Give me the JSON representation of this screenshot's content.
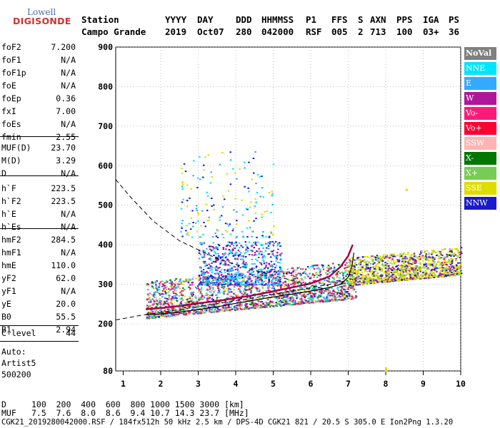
{
  "logo": {
    "top": "Lowell",
    "main": "DIGISONDE"
  },
  "header": {
    "col_label": "Station",
    "station": "Campo Grande",
    "fields": [
      {
        "label": "YYYY",
        "value": "2019"
      },
      {
        "label": "DAY",
        "value": "Oct07"
      },
      {
        "label": "DDD",
        "value": "280"
      },
      {
        "label": "HHMMSS",
        "value": "042000"
      },
      {
        "label": "P1",
        "value": "RSF"
      },
      {
        "label": "FFS",
        "value": "005"
      },
      {
        "label": "S",
        "value": "2"
      },
      {
        "label": "AXN",
        "value": "713"
      },
      {
        "label": "PPS",
        "value": "100"
      },
      {
        "label": "IGA",
        "value": "03+"
      },
      {
        "label": "PS",
        "value": "36"
      }
    ]
  },
  "params": [
    {
      "label": "foF2",
      "value": "7.200"
    },
    {
      "label": "foF1",
      "value": "N/A"
    },
    {
      "label": "foF1p",
      "value": "N/A"
    },
    {
      "label": "foE",
      "value": "N/A"
    },
    {
      "label": "foEp",
      "value": "0.36"
    },
    {
      "label": "fxI",
      "value": "7.00"
    },
    {
      "label": "foEs",
      "value": "N/A"
    },
    {
      "label": "fmin",
      "value": "2.55"
    },
    {
      "label": "MUF(D)",
      "value": "23.70"
    },
    {
      "label": "M(D)",
      "value": "3.29"
    },
    {
      "label": "D",
      "value": "N/A"
    },
    {
      "label": "h`F",
      "value": "223.5"
    },
    {
      "label": "h`F2",
      "value": "223.5"
    },
    {
      "label": "h`E",
      "value": "N/A"
    },
    {
      "label": "h`Es",
      "value": "N/A"
    },
    {
      "label": "hmF2",
      "value": "284.5"
    },
    {
      "label": "hmF1",
      "value": "N/A"
    },
    {
      "label": "hmE",
      "value": "110.0"
    },
    {
      "label": "yF2",
      "value": "62.0"
    },
    {
      "label": "yF1",
      "value": "N/A"
    },
    {
      "label": "yE",
      "value": "20.0"
    },
    {
      "label": "B0",
      "value": "55.5"
    },
    {
      "label": "B1",
      "value": "2.94"
    },
    {
      "label": "C-level",
      "value": "44"
    }
  ],
  "autoscaling": {
    "auto": "Auto:",
    "artist": "Artist5",
    "code": "500200"
  },
  "legend": [
    {
      "label": "NoVal",
      "color": "#808080"
    },
    {
      "label": "NNE",
      "color": "#00e5ff"
    },
    {
      "label": "E",
      "color": "#33aaff"
    },
    {
      "label": "W",
      "color": "#b0169a"
    },
    {
      "label": "Vo-",
      "color": "#ff1a7a"
    },
    {
      "label": "Vo+",
      "color": "#ff0033"
    },
    {
      "label": "SSW",
      "color": "#ffb3b3"
    },
    {
      "label": "X-",
      "color": "#007700"
    },
    {
      "label": "X+",
      "color": "#77cc55"
    },
    {
      "label": "SSE",
      "color": "#dddd00"
    },
    {
      "label": "NNW",
      "color": "#1a1acc"
    }
  ],
  "bottom_table": {
    "row1_label": "D",
    "row1_values": "100  200  400  600  800 1000 1500 3000 [km]",
    "row2_label": "MUF",
    "row2_values": "7.5  7.6  8.0  8.6  9.4 10.7 14.3 23.7 [MHz]"
  },
  "footer": "CGK21_2019280042000.RSF / 184fx512h 50 kHz 2.5 km / DPS-4D CGK21 821 / 20.5 S 305.0 E Ion2Png 1.3.20",
  "chart_data": {
    "type": "scatter",
    "xlim": [
      0.8,
      10
    ],
    "ylim": [
      80,
      900
    ],
    "xticks": [
      "1",
      "2",
      "3",
      "4",
      "5",
      "6",
      "7",
      "8",
      "9",
      "10"
    ],
    "yticks": [
      {
        "v": 900,
        "label": "900"
      },
      {
        "v": 800,
        "label": "800"
      },
      {
        "v": 700,
        "label": "700"
      },
      {
        "v": 600,
        "label": "600"
      },
      {
        "v": 500,
        "label": "500"
      },
      {
        "v": 400,
        "label": "400"
      },
      {
        "v": 300,
        "label": "300"
      },
      {
        "v": 200,
        "label": "200"
      },
      {
        "v": 80,
        "label": "80"
      }
    ],
    "trace_lower": [
      [
        1.6,
        223
      ],
      [
        2,
        225
      ],
      [
        2.5,
        230
      ],
      [
        3,
        236
      ],
      [
        3.5,
        243
      ],
      [
        4,
        252
      ],
      [
        4.5,
        260
      ],
      [
        5,
        268
      ],
      [
        5.5,
        275
      ],
      [
        6,
        283
      ],
      [
        6.5,
        292
      ],
      [
        6.8,
        300
      ],
      [
        7.0,
        318
      ],
      [
        7.1,
        345
      ],
      [
        7.15,
        380
      ]
    ],
    "trace_upper": [
      [
        1.6,
        237
      ],
      [
        2,
        240
      ],
      [
        2.5,
        245
      ],
      [
        3,
        252
      ],
      [
        3.5,
        258
      ],
      [
        4,
        265
      ],
      [
        4.5,
        273
      ],
      [
        5,
        282
      ],
      [
        5.5,
        292
      ],
      [
        6,
        302
      ],
      [
        6.5,
        320
      ],
      [
        6.8,
        345
      ],
      [
        7.0,
        372
      ],
      [
        7.12,
        400
      ]
    ],
    "profile_dashed": [
      [
        0.8,
        565
      ],
      [
        1.2,
        520
      ],
      [
        1.8,
        460
      ],
      [
        2.5,
        410
      ],
      [
        3.5,
        365
      ],
      [
        4.5,
        335
      ],
      [
        5.5,
        310
      ],
      [
        6.5,
        285
      ],
      [
        7.0,
        270
      ]
    ],
    "lower_dashed": [
      [
        0.8,
        210
      ],
      [
        1.5,
        222
      ],
      [
        2.5,
        236
      ],
      [
        3.5,
        251
      ],
      [
        4.5,
        266
      ],
      [
        5.5,
        283
      ],
      [
        6.5,
        300
      ],
      [
        7.0,
        310
      ]
    ],
    "outliers": [
      [
        8.0,
        81
      ],
      [
        8.0,
        87
      ],
      [
        8.55,
        540
      ]
    ],
    "clusters": [
      {
        "fmin": 1.6,
        "fmax": 7.2,
        "hbase": 215,
        "hspread": 95,
        "n": 2200,
        "colors": [
          "#00e5ff",
          "#33aaff",
          "#b0169a",
          "#ff1a7a",
          "#ff0033",
          "#007700",
          "#77cc55",
          "#dddd00",
          "#1a1acc",
          "#ffb3b3",
          "#808080"
        ]
      },
      {
        "fmin": 3.0,
        "fmax": 5.2,
        "hbase": 300,
        "hspread": 110,
        "n": 700,
        "colors": [
          "#00e5ff",
          "#33aaff",
          "#1a1acc",
          "#b0169a"
        ]
      },
      {
        "fmin": 2.5,
        "fmax": 5.0,
        "hbase": 420,
        "hspread": 220,
        "n": 180,
        "colors": [
          "#00e5ff",
          "#33aaff",
          "#1a1acc",
          "#dddd00"
        ]
      },
      {
        "fmin": 7.0,
        "fmax": 10.0,
        "hbase": 250,
        "hspread": 70,
        "n": 1300,
        "colors": [
          "#dddd00",
          "#dddd00",
          "#dddd00",
          "#77cc55",
          "#1a1acc",
          "#b0169a"
        ]
      }
    ]
  }
}
